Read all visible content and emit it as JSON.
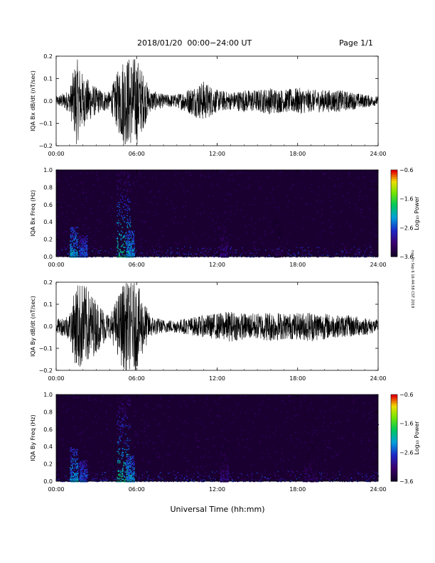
{
  "header": {
    "title": "2018/01/20  00:00−24:00 UT",
    "page": "Page 1/1"
  },
  "stamp": "run Fri Sep 6 16:44:58 CST 2019",
  "footer": {
    "xlabel": "Universal Time (hh:mm)"
  },
  "colors": {
    "trace": "#000000",
    "spectrogram_background": "#1a0030"
  },
  "chart_data": [
    {
      "type": "line",
      "ylabel": "IQA Bx dB/dt (nT/sec)",
      "xlim": [
        0,
        24
      ],
      "ylim": [
        -0.2,
        0.2
      ],
      "x_ticks": [
        "00:00",
        "06:00",
        "12:00",
        "18:00",
        "24:00"
      ],
      "y_ticks": [
        "0.2",
        "0.1",
        "0.0",
        "−0.1",
        "−0.2"
      ],
      "series": [
        {
          "envelope_hours": [
            0,
            1,
            1.5,
            2,
            3,
            4,
            5,
            6,
            7,
            8,
            9,
            10,
            11,
            12,
            13,
            14,
            15,
            16,
            17,
            18,
            19,
            20,
            21,
            22,
            23,
            24
          ],
          "envelope_amplitude": [
            0.02,
            0.05,
            0.2,
            0.12,
            0.06,
            0.04,
            0.2,
            0.2,
            0.05,
            0.03,
            0.03,
            0.06,
            0.09,
            0.05,
            0.04,
            0.05,
            0.05,
            0.06,
            0.05,
            0.06,
            0.05,
            0.05,
            0.05,
            0.04,
            0.03,
            0.02
          ]
        }
      ]
    },
    {
      "type": "heatmap",
      "ylabel": "IQA Bx Freq (Hz)",
      "xlim": [
        0,
        24
      ],
      "ylim": [
        0.0,
        1.0
      ],
      "x_ticks": [
        "00:00",
        "06:00",
        "12:00",
        "18:00",
        "24:00"
      ],
      "y_ticks": [
        "1.0",
        "0.8",
        "0.6",
        "0.4",
        "0.2",
        "0.0"
      ],
      "colorbar": {
        "label": "Log₁₀ Power",
        "ticks": [
          "−0.6",
          "−1.6",
          "−2.6",
          "−3.6"
        ],
        "range": [
          -3.6,
          -0.6
        ]
      },
      "events": [
        {
          "hour": 1.3,
          "max_freq": 0.35,
          "log_power": -2.0
        },
        {
          "hour": 2.0,
          "max_freq": 0.25,
          "log_power": -2.3
        },
        {
          "hour": 5.0,
          "max_freq": 1.0,
          "log_power": -1.6
        },
        {
          "hour": 5.5,
          "max_freq": 0.3,
          "log_power": -2.0
        },
        {
          "hour": 12.5,
          "max_freq": 0.45,
          "log_power": -2.8
        },
        {
          "hour": 16.5,
          "max_freq": 0.45,
          "log_power": -3.1
        }
      ]
    },
    {
      "type": "line",
      "ylabel": "IQA By dB/dt (nT/sec)",
      "xlim": [
        0,
        24
      ],
      "ylim": [
        -0.2,
        0.2
      ],
      "x_ticks": [
        "00:00",
        "06:00",
        "12:00",
        "18:00",
        "24:00"
      ],
      "y_ticks": [
        "0.2",
        "0.1",
        "0.0",
        "−0.1",
        "−0.2"
      ],
      "series": [
        {
          "envelope_hours": [
            0,
            1,
            1.5,
            2,
            3,
            4,
            5,
            6,
            7,
            8,
            9,
            10,
            11,
            12,
            13,
            14,
            15,
            16,
            17,
            18,
            19,
            20,
            21,
            22,
            23,
            24
          ],
          "envelope_amplitude": [
            0.03,
            0.06,
            0.2,
            0.2,
            0.12,
            0.05,
            0.2,
            0.2,
            0.05,
            0.03,
            0.03,
            0.04,
            0.05,
            0.06,
            0.07,
            0.06,
            0.06,
            0.07,
            0.06,
            0.06,
            0.07,
            0.06,
            0.05,
            0.05,
            0.04,
            0.03
          ]
        }
      ]
    },
    {
      "type": "heatmap",
      "ylabel": "IQA By Freq (Hz)",
      "xlim": [
        0,
        24
      ],
      "ylim": [
        0.0,
        1.0
      ],
      "x_ticks": [
        "00:00",
        "06:00",
        "12:00",
        "18:00",
        "24:00"
      ],
      "y_ticks": [
        "1.0",
        "0.8",
        "0.6",
        "0.4",
        "0.2",
        "0.0"
      ],
      "colorbar": {
        "label": "Log₁₀ Power",
        "ticks": [
          "−0.6",
          "−1.6",
          "−2.6",
          "−3.6"
        ],
        "range": [
          -3.6,
          -0.6
        ]
      },
      "events": [
        {
          "hour": 1.3,
          "max_freq": 0.4,
          "log_power": -2.0
        },
        {
          "hour": 2.0,
          "max_freq": 0.25,
          "log_power": -2.3
        },
        {
          "hour": 5.0,
          "max_freq": 1.0,
          "log_power": -1.6
        },
        {
          "hour": 5.5,
          "max_freq": 0.3,
          "log_power": -2.0
        },
        {
          "hour": 12.5,
          "max_freq": 0.45,
          "log_power": -2.8
        },
        {
          "hour": 19.0,
          "max_freq": 1.0,
          "log_power": -2.9
        }
      ]
    }
  ]
}
